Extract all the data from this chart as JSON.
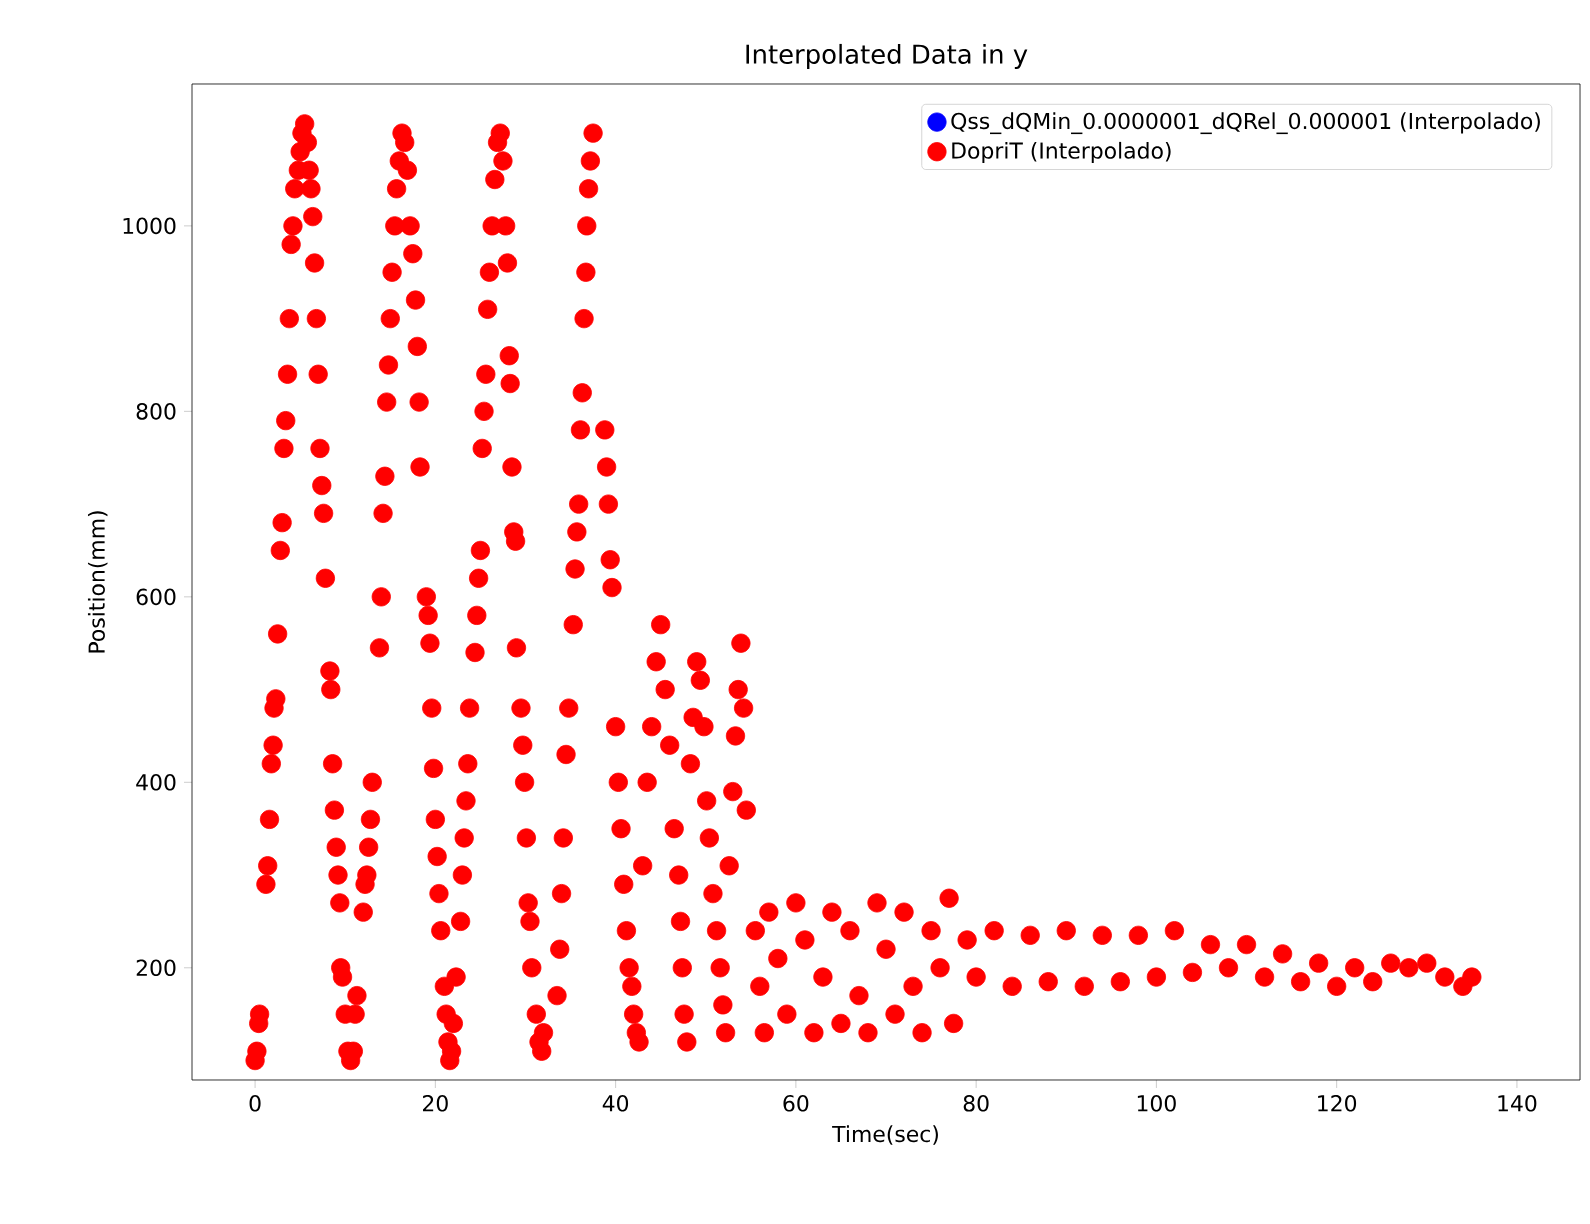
{
  "chart_data": {
    "type": "scatter",
    "title": "Interpolated Data in y",
    "xlabel": "Time(sec)",
    "ylabel": "Position(mm)",
    "xlim": [
      -7,
      147
    ],
    "ylim": [
      79,
      1153
    ],
    "xticks": [
      0,
      20,
      40,
      60,
      80,
      100,
      120,
      140
    ],
    "yticks": [
      200,
      400,
      600,
      800,
      1000
    ],
    "grid": false,
    "legend": "top right",
    "marker": "circle",
    "x": [
      0,
      0.2,
      0.4,
      0.5,
      1.2,
      1.4,
      1.6,
      1.8,
      2,
      2.1,
      2.3,
      2.5,
      2.8,
      3,
      3.2,
      3.4,
      3.6,
      3.8,
      4,
      4.2,
      4.4,
      4.8,
      5,
      5.2,
      5.5,
      5.8,
      6,
      6.2,
      6.4,
      6.6,
      6.8,
      7,
      7.2,
      7.4,
      7.6,
      7.8,
      8.3,
      8.4,
      8.6,
      8.8,
      9,
      9.2,
      9.4,
      9.5,
      9.7,
      10,
      10.3,
      10.6,
      10.9,
      11.1,
      11.3,
      12,
      12.2,
      12.4,
      12.6,
      12.8,
      13,
      13.8,
      14,
      14.2,
      14.4,
      14.6,
      14.8,
      15,
      15.2,
      15.5,
      15.7,
      16,
      16.3,
      16.6,
      16.9,
      17.2,
      17.5,
      17.8,
      18,
      18.2,
      18.3,
      19,
      19.2,
      19.4,
      19.6,
      19.8,
      20,
      20.2,
      20.4,
      20.6,
      21,
      21.2,
      21.4,
      21.6,
      21.8,
      22,
      22.3,
      22.8,
      23,
      23.2,
      23.4,
      23.6,
      23.8,
      24.4,
      24.6,
      24.8,
      25,
      25.2,
      25.4,
      25.6,
      25.8,
      26,
      26.3,
      26.6,
      26.9,
      27.2,
      27.5,
      27.8,
      28,
      28.2,
      28.3,
      28.5,
      28.7,
      28.9,
      29,
      29.5,
      29.7,
      29.9,
      30.1,
      30.3,
      30.5,
      30.7,
      31.2,
      31.5,
      31.8,
      32,
      33.5,
      33.8,
      34,
      34.2,
      34.5,
      34.8,
      35.3,
      35.5,
      35.7,
      35.9,
      36.1,
      36.3,
      36.5,
      36.7,
      36.8,
      37,
      37.2,
      37.5,
      38.8,
      39,
      39.2,
      39.4,
      39.6,
      40,
      40.3,
      40.6,
      40.9,
      41.2,
      41.5,
      41.8,
      42,
      42.3,
      42.6,
      43,
      43.5,
      44,
      44.5,
      45,
      45.5,
      46,
      46.5,
      47,
      47.2,
      47.4,
      47.6,
      47.9,
      48.3,
      48.6,
      49,
      49.4,
      49.8,
      50.1,
      50.4,
      50.8,
      51.2,
      51.6,
      51.9,
      52.2,
      52.6,
      53,
      53.3,
      53.6,
      53.9,
      54.2,
      54.5,
      55.5,
      56,
      56.5,
      57,
      58,
      59,
      60,
      61,
      62,
      63,
      64,
      65,
      66,
      67,
      68,
      69,
      70,
      71,
      72,
      73,
      74,
      75,
      76,
      77,
      77.5,
      79,
      80,
      82,
      84,
      86,
      88,
      90,
      92,
      94,
      96,
      98,
      100,
      102,
      104,
      106,
      108,
      110,
      112,
      114,
      116,
      118,
      120,
      122,
      124,
      126,
      128,
      130,
      132,
      134,
      135
    ],
    "series": [
      {
        "name": "Qss_dQMin_0.0000001_dQRel_0.000001 (Interpolado)",
        "color": "#0000ff",
        "values": [
          null,
          null,
          null,
          null,
          null,
          null,
          null,
          null,
          null,
          null,
          null,
          null,
          null,
          null,
          null,
          null,
          null,
          null,
          null,
          null,
          null,
          null,
          null,
          null,
          null,
          null,
          null,
          null,
          null,
          null,
          null,
          null,
          null,
          null,
          null,
          null,
          null,
          null,
          null,
          null,
          null,
          null,
          null,
          null,
          null,
          null,
          null,
          null,
          null,
          null,
          null,
          null,
          null,
          null,
          null,
          null,
          null,
          null,
          null,
          null,
          null,
          null,
          null,
          null,
          null,
          null,
          null,
          null,
          null,
          null,
          null,
          null,
          null,
          null,
          null,
          null,
          null,
          null,
          null,
          null,
          null,
          null,
          null,
          null,
          null,
          null,
          null,
          null,
          null,
          null,
          null,
          null,
          null,
          null,
          null,
          null,
          null,
          null,
          null,
          null,
          null,
          null,
          null,
          null,
          null,
          null,
          null,
          null,
          null,
          null,
          null,
          null,
          null,
          null,
          null,
          null,
          null,
          null,
          null,
          null,
          null,
          null,
          null,
          null,
          null,
          null,
          null,
          null,
          null,
          null,
          null,
          null,
          null,
          null,
          null,
          null,
          null,
          null,
          null,
          null,
          null,
          null,
          null,
          null,
          null,
          null,
          null,
          null,
          null,
          null,
          null,
          null,
          null,
          null,
          null,
          null,
          null,
          null,
          null,
          null,
          null,
          null,
          null,
          null,
          null,
          null,
          null,
          null,
          null,
          null,
          null,
          null,
          null,
          null,
          null,
          null,
          null,
          null,
          null,
          null,
          null,
          null,
          null,
          null,
          null,
          null,
          null,
          null,
          null,
          null,
          null,
          null,
          null,
          null,
          null,
          null,
          null,
          null,
          null,
          null,
          null,
          null,
          null,
          null,
          null,
          null,
          null,
          null,
          null,
          null,
          null,
          null,
          null,
          null,
          null,
          null,
          null,
          null,
          null,
          null,
          null,
          null,
          null,
          null,
          null,
          null,
          null,
          null,
          null,
          null,
          null,
          null,
          null,
          null,
          null,
          null,
          null,
          null,
          null,
          null,
          null,
          null,
          null,
          null,
          null,
          null,
          null,
          null,
          null,
          null,
          null,
          null
        ]
      },
      {
        "name": "DopriT (Interpolado)",
        "color": "#ff0000",
        "values": [
          100,
          110,
          140,
          150,
          290,
          310,
          360,
          420,
          440,
          480,
          490,
          560,
          650,
          680,
          760,
          790,
          840,
          900,
          980,
          1000,
          1040,
          1060,
          1080,
          1100,
          1110,
          1090,
          1060,
          1040,
          1010,
          960,
          900,
          840,
          760,
          720,
          690,
          620,
          520,
          500,
          420,
          370,
          330,
          300,
          270,
          200,
          190,
          150,
          110,
          100,
          110,
          150,
          170,
          260,
          290,
          300,
          330,
          360,
          400,
          545,
          600,
          690,
          730,
          810,
          850,
          900,
          950,
          1000,
          1040,
          1070,
          1100,
          1090,
          1060,
          1000,
          970,
          920,
          870,
          810,
          740,
          600,
          580,
          550,
          480,
          415,
          360,
          320,
          280,
          240,
          180,
          150,
          120,
          100,
          110,
          140,
          190,
          250,
          300,
          340,
          380,
          420,
          480,
          540,
          580,
          620,
          650,
          760,
          800,
          840,
          910,
          950,
          1000,
          1050,
          1090,
          1100,
          1070,
          1000,
          960,
          860,
          830,
          740,
          670,
          660,
          545,
          480,
          440,
          400,
          340,
          270,
          250,
          200,
          150,
          120,
          110,
          130,
          170,
          220,
          280,
          340,
          430,
          480,
          570,
          630,
          670,
          700,
          780,
          820,
          900,
          950,
          1000,
          1040,
          1070,
          1100,
          780,
          740,
          700,
          640,
          610,
          460,
          400,
          350,
          290,
          240,
          200,
          180,
          150,
          130,
          120,
          310,
          400,
          460,
          530,
          570,
          500,
          440,
          350,
          300,
          250,
          200,
          150,
          120,
          420,
          470,
          530,
          510,
          460,
          380,
          340,
          280,
          240,
          200,
          160,
          130,
          310,
          390,
          450,
          500,
          550,
          480,
          370,
          240,
          180,
          130,
          260,
          210,
          150,
          270,
          230,
          130,
          190,
          260,
          140,
          240,
          170,
          130,
          270,
          220,
          150,
          260,
          180,
          130,
          240,
          200,
          275,
          140,
          230,
          190,
          240,
          180,
          235,
          185,
          240,
          180,
          235,
          185,
          235,
          190,
          240,
          195,
          225,
          200,
          225,
          190,
          215,
          185,
          205,
          180,
          200,
          185,
          205,
          200,
          205,
          190,
          180,
          190
        ]
      }
    ]
  }
}
